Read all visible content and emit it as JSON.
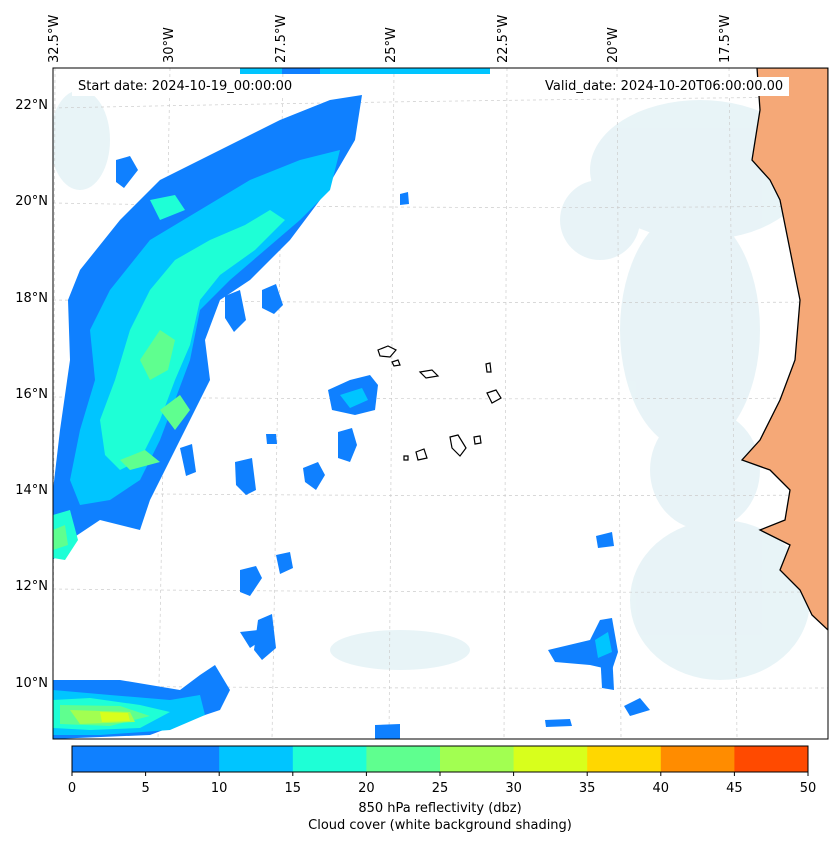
{
  "map": {
    "start_date": "Start date: 2024-10-19_00:00:00",
    "valid_date": "Valid_date: 2024-10-20T06:00:00.00",
    "longitude_labels": [
      "32.5°W",
      "30°W",
      "27.5°W",
      "25°W",
      "22.5°W",
      "20°W",
      "17.5°W"
    ],
    "latitude_labels": [
      "22°N",
      "20°N",
      "18°N",
      "16°N",
      "14°N",
      "12°N",
      "10°N"
    ],
    "features": {
      "land": "West African coast (Mauritania, Senegal, Gambia, Guinea-Bissau)",
      "islands": "Cape Verde Islands",
      "shading": "cloud cover in light blue-white, land in orange"
    }
  },
  "colorbar": {
    "ticks": [
      "0",
      "5",
      "10",
      "15",
      "20",
      "25",
      "30",
      "35",
      "40",
      "45",
      "50"
    ],
    "colors": [
      "#0f80ff",
      "#00c5ff",
      "#1effd6",
      "#5fff8f",
      "#a2ff51",
      "#d8ff1c",
      "#ffd700",
      "#ff8c00",
      "#ff4a00"
    ],
    "label": "850 hPa reflectivity (dbz)",
    "sublabel": "Cloud cover (white background shading)"
  }
}
